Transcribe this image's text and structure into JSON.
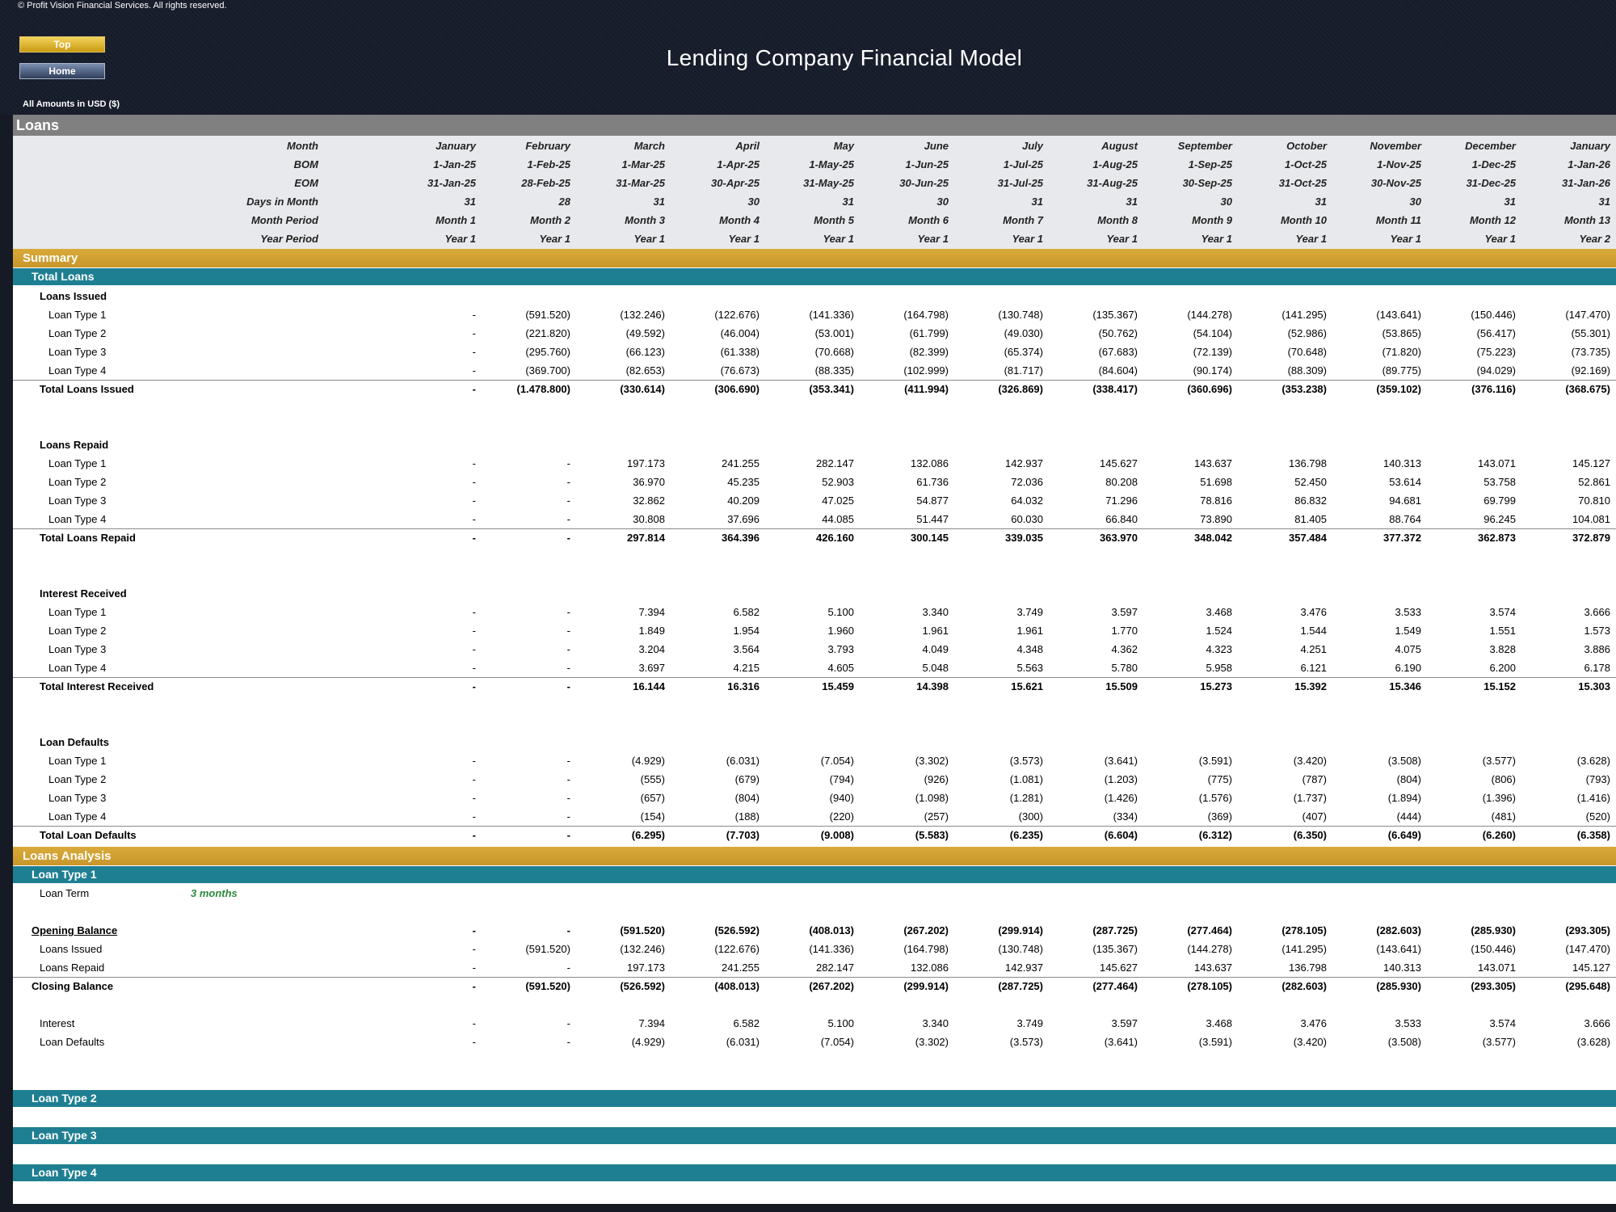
{
  "topbar": {
    "copyright": "© Profit Vision Financial Services. All rights reserved.",
    "top_button": "Top",
    "home_button": "Home",
    "title": "Lending Company Financial Model",
    "amounts_note": "All Amounts in  USD ($)"
  },
  "sheet": {
    "section_title": "Loans",
    "header_rows": [
      {
        "label": "Month",
        "values": [
          "January",
          "February",
          "March",
          "April",
          "May",
          "June",
          "July",
          "August",
          "September",
          "October",
          "November",
          "December",
          "January"
        ]
      },
      {
        "label": "BOM",
        "values": [
          "1-Jan-25",
          "1-Feb-25",
          "1-Mar-25",
          "1-Apr-25",
          "1-May-25",
          "1-Jun-25",
          "1-Jul-25",
          "1-Aug-25",
          "1-Sep-25",
          "1-Oct-25",
          "1-Nov-25",
          "1-Dec-25",
          "1-Jan-26"
        ]
      },
      {
        "label": "EOM",
        "values": [
          "31-Jan-25",
          "28-Feb-25",
          "31-Mar-25",
          "30-Apr-25",
          "31-May-25",
          "30-Jun-25",
          "31-Jul-25",
          "31-Aug-25",
          "30-Sep-25",
          "31-Oct-25",
          "30-Nov-25",
          "31-Dec-25",
          "31-Jan-26"
        ]
      },
      {
        "label": "Days in Month",
        "values": [
          "31",
          "28",
          "31",
          "30",
          "31",
          "30",
          "31",
          "31",
          "30",
          "31",
          "30",
          "31",
          "31"
        ]
      },
      {
        "label": "Month Period",
        "values": [
          "Month 1",
          "Month 2",
          "Month 3",
          "Month 4",
          "Month 5",
          "Month 6",
          "Month 7",
          "Month 8",
          "Month 9",
          "Month 10",
          "Month 11",
          "Month 12",
          "Month 13"
        ]
      },
      {
        "label": "Year Period",
        "values": [
          "Year 1",
          "Year 1",
          "Year 1",
          "Year 1",
          "Year 1",
          "Year 1",
          "Year 1",
          "Year 1",
          "Year 1",
          "Year 1",
          "Year 1",
          "Year 1",
          "Year 2"
        ]
      }
    ],
    "summary": {
      "title": "Summary",
      "total_loans_band": "Total Loans",
      "groups": [
        {
          "heading": "Loans Issued",
          "rows": [
            {
              "label": "Loan Type 1",
              "values": [
                "-",
                "(591.520)",
                "(132.246)",
                "(122.676)",
                "(141.336)",
                "(164.798)",
                "(130.748)",
                "(135.367)",
                "(144.278)",
                "(141.295)",
                "(143.641)",
                "(150.446)",
                "(147.470)"
              ]
            },
            {
              "label": "Loan Type 2",
              "values": [
                "-",
                "(221.820)",
                "(49.592)",
                "(46.004)",
                "(53.001)",
                "(61.799)",
                "(49.030)",
                "(50.762)",
                "(54.104)",
                "(52.986)",
                "(53.865)",
                "(56.417)",
                "(55.301)"
              ]
            },
            {
              "label": "Loan Type 3",
              "values": [
                "-",
                "(295.760)",
                "(66.123)",
                "(61.338)",
                "(70.668)",
                "(82.399)",
                "(65.374)",
                "(67.683)",
                "(72.139)",
                "(70.648)",
                "(71.820)",
                "(75.223)",
                "(73.735)"
              ]
            },
            {
              "label": "Loan Type 4",
              "values": [
                "-",
                "(369.700)",
                "(82.653)",
                "(76.673)",
                "(88.335)",
                "(102.999)",
                "(81.717)",
                "(84.604)",
                "(90.174)",
                "(88.309)",
                "(89.775)",
                "(94.029)",
                "(92.169)"
              ]
            }
          ],
          "total": {
            "label": "Total Loans Issued",
            "values": [
              "-",
              "(1.478.800)",
              "(330.614)",
              "(306.690)",
              "(353.341)",
              "(411.994)",
              "(326.869)",
              "(338.417)",
              "(360.696)",
              "(353.238)",
              "(359.102)",
              "(376.116)",
              "(368.675)"
            ]
          }
        },
        {
          "heading": "Loans Repaid",
          "rows": [
            {
              "label": "Loan Type 1",
              "values": [
                "-",
                "-",
                "197.173",
                "241.255",
                "282.147",
                "132.086",
                "142.937",
                "145.627",
                "143.637",
                "136.798",
                "140.313",
                "143.071",
                "145.127"
              ]
            },
            {
              "label": "Loan Type 2",
              "values": [
                "-",
                "-",
                "36.970",
                "45.235",
                "52.903",
                "61.736",
                "72.036",
                "80.208",
                "51.698",
                "52.450",
                "53.614",
                "53.758",
                "52.861"
              ]
            },
            {
              "label": "Loan Type 3",
              "values": [
                "-",
                "-",
                "32.862",
                "40.209",
                "47.025",
                "54.877",
                "64.032",
                "71.296",
                "78.816",
                "86.832",
                "94.681",
                "69.799",
                "70.810"
              ]
            },
            {
              "label": "Loan Type 4",
              "values": [
                "-",
                "-",
                "30.808",
                "37.696",
                "44.085",
                "51.447",
                "60.030",
                "66.840",
                "73.890",
                "81.405",
                "88.764",
                "96.245",
                "104.081"
              ]
            }
          ],
          "total": {
            "label": "Total Loans Repaid",
            "values": [
              "-",
              "-",
              "297.814",
              "364.396",
              "426.160",
              "300.145",
              "339.035",
              "363.970",
              "348.042",
              "357.484",
              "377.372",
              "362.873",
              "372.879"
            ]
          }
        },
        {
          "heading": "Interest Received",
          "rows": [
            {
              "label": "Loan Type 1",
              "values": [
                "-",
                "-",
                "7.394",
                "6.582",
                "5.100",
                "3.340",
                "3.749",
                "3.597",
                "3.468",
                "3.476",
                "3.533",
                "3.574",
                "3.666"
              ]
            },
            {
              "label": "Loan Type 2",
              "values": [
                "-",
                "-",
                "1.849",
                "1.954",
                "1.960",
                "1.961",
                "1.961",
                "1.770",
                "1.524",
                "1.544",
                "1.549",
                "1.551",
                "1.573"
              ]
            },
            {
              "label": "Loan Type 3",
              "values": [
                "-",
                "-",
                "3.204",
                "3.564",
                "3.793",
                "4.049",
                "4.348",
                "4.362",
                "4.323",
                "4.251",
                "4.075",
                "3.828",
                "3.886"
              ]
            },
            {
              "label": "Loan Type 4",
              "values": [
                "-",
                "-",
                "3.697",
                "4.215",
                "4.605",
                "5.048",
                "5.563",
                "5.780",
                "5.958",
                "6.121",
                "6.190",
                "6.200",
                "6.178"
              ]
            }
          ],
          "total": {
            "label": "Total Interest Received",
            "values": [
              "-",
              "-",
              "16.144",
              "16.316",
              "15.459",
              "14.398",
              "15.621",
              "15.509",
              "15.273",
              "15.392",
              "15.346",
              "15.152",
              "15.303"
            ]
          }
        },
        {
          "heading": "Loan Defaults",
          "rows": [
            {
              "label": "Loan Type 1",
              "values": [
                "-",
                "-",
                "(4.929)",
                "(6.031)",
                "(7.054)",
                "(3.302)",
                "(3.573)",
                "(3.641)",
                "(3.591)",
                "(3.420)",
                "(3.508)",
                "(3.577)",
                "(3.628)"
              ]
            },
            {
              "label": "Loan Type 2",
              "values": [
                "-",
                "-",
                "(555)",
                "(679)",
                "(794)",
                "(926)",
                "(1.081)",
                "(1.203)",
                "(775)",
                "(787)",
                "(804)",
                "(806)",
                "(793)"
              ]
            },
            {
              "label": "Loan Type 3",
              "values": [
                "-",
                "-",
                "(657)",
                "(804)",
                "(940)",
                "(1.098)",
                "(1.281)",
                "(1.426)",
                "(1.576)",
                "(1.737)",
                "(1.894)",
                "(1.396)",
                "(1.416)"
              ]
            },
            {
              "label": "Loan Type 4",
              "values": [
                "-",
                "-",
                "(154)",
                "(188)",
                "(220)",
                "(257)",
                "(300)",
                "(334)",
                "(369)",
                "(407)",
                "(444)",
                "(481)",
                "(520)"
              ]
            }
          ],
          "total": {
            "label": "Total Loan Defaults",
            "values": [
              "-",
              "-",
              "(6.295)",
              "(7.703)",
              "(9.008)",
              "(5.583)",
              "(6.235)",
              "(6.604)",
              "(6.312)",
              "(6.350)",
              "(6.649)",
              "(6.260)",
              "(6.358)"
            ]
          }
        }
      ]
    },
    "analysis": {
      "title": "Loans Analysis",
      "loan_type_1": {
        "band": "Loan Type 1",
        "term_label": "Loan Term",
        "term_value": "3 months",
        "opening": {
          "label": "Opening Balance",
          "values": [
            "-",
            "-",
            "(591.520)",
            "(526.592)",
            "(408.013)",
            "(267.202)",
            "(299.914)",
            "(287.725)",
            "(277.464)",
            "(278.105)",
            "(282.603)",
            "(285.930)",
            "(293.305)"
          ]
        },
        "issued": {
          "label": "Loans Issued",
          "values": [
            "-",
            "(591.520)",
            "(132.246)",
            "(122.676)",
            "(141.336)",
            "(164.798)",
            "(130.748)",
            "(135.367)",
            "(144.278)",
            "(141.295)",
            "(143.641)",
            "(150.446)",
            "(147.470)"
          ]
        },
        "repaid": {
          "label": "Loans Repaid",
          "values": [
            "-",
            "-",
            "197.173",
            "241.255",
            "282.147",
            "132.086",
            "142.937",
            "145.627",
            "143.637",
            "136.798",
            "140.313",
            "143.071",
            "145.127"
          ]
        },
        "closing": {
          "label": "Closing Balance",
          "values": [
            "-",
            "(591.520)",
            "(526.592)",
            "(408.013)",
            "(267.202)",
            "(299.914)",
            "(287.725)",
            "(277.464)",
            "(278.105)",
            "(282.603)",
            "(285.930)",
            "(293.305)",
            "(295.648)"
          ]
        },
        "interest": {
          "label": "Interest",
          "values": [
            "-",
            "-",
            "7.394",
            "6.582",
            "5.100",
            "3.340",
            "3.749",
            "3.597",
            "3.468",
            "3.476",
            "3.533",
            "3.574",
            "3.666"
          ]
        },
        "defaults": {
          "label": "Loan Defaults",
          "values": [
            "-",
            "-",
            "(4.929)",
            "(6.031)",
            "(7.054)",
            "(3.302)",
            "(3.573)",
            "(3.641)",
            "(3.591)",
            "(3.420)",
            "(3.508)",
            "(3.577)",
            "(3.628)"
          ]
        }
      },
      "other_bands": [
        "Loan Type 2",
        "Loan Type 3",
        "Loan Type 4"
      ]
    }
  }
}
